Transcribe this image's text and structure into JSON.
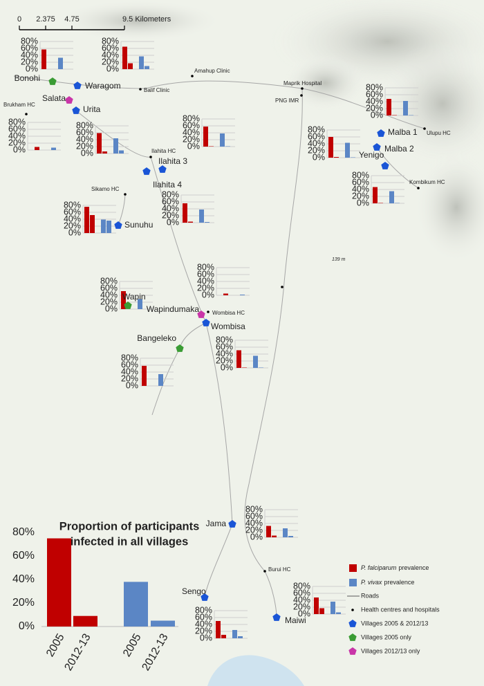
{
  "scale_bar": {
    "labels": [
      "0",
      "2.375",
      "4.75",
      "9.5 Kilometers"
    ]
  },
  "mini_chart_axis": {
    "ylim": [
      0,
      80
    ],
    "yticks": [
      {
        "value": 80,
        "label": "80%"
      },
      {
        "value": 60,
        "label": "60%"
      },
      {
        "value": 40,
        "label": "40%"
      },
      {
        "value": 20,
        "label": "20%"
      },
      {
        "value": 0,
        "label": "0%"
      }
    ]
  },
  "species": [
    {
      "italic": "P. falciparum",
      "label": "prevalence",
      "color": "#c00000"
    },
    {
      "italic": "P. vivax",
      "label": "prevalence",
      "color": "#5b86c5"
    }
  ],
  "village_types": {
    "both": {
      "label": "Villages 2005 & 2012/13",
      "color": "#1a55d6"
    },
    "2005": {
      "label": "Villages 2005 only",
      "color": "#3a9c34"
    },
    "2012": {
      "label": "Villages 2012/13 only",
      "color": "#c935a8"
    }
  },
  "legend_other": {
    "roads": "Roads",
    "health": "Health centres and hospitals"
  },
  "villages": [
    {
      "name": "Bonohi",
      "type": "2005",
      "values": [
        57,
        null,
        33,
        null
      ]
    },
    {
      "name": "Waragom",
      "type": "both",
      "values": [
        65,
        17,
        37,
        9
      ]
    },
    {
      "name": "Salata",
      "type": "2012",
      "values": [
        null,
        9,
        null,
        7
      ]
    },
    {
      "name": "Urita",
      "type": "both",
      "values": [
        59,
        6,
        44,
        9
      ]
    },
    {
      "name": "Ilahita 3",
      "type": "both",
      "values": [
        58,
        1,
        38,
        1
      ]
    },
    {
      "name": "Ilahita 4",
      "type": "both",
      "values": [
        56,
        3,
        38,
        2
      ]
    },
    {
      "name": "Sunuhu",
      "type": "both",
      "values": [
        76,
        52,
        39,
        36
      ]
    },
    {
      "name": "Malba 1",
      "type": "both",
      "values": [
        48,
        1,
        42,
        1
      ]
    },
    {
      "name": "Malba 2",
      "type": "both",
      "values": [
        60,
        2,
        43,
        1
      ]
    },
    {
      "name": "Yenigo",
      "type": "both",
      "values": [
        47,
        1,
        35,
        1
      ]
    },
    {
      "name": "Wapin",
      "type": "2005",
      "values": [
        52,
        null,
        29,
        null
      ]
    },
    {
      "name": "Wapindumaka",
      "type": "2012",
      "values": [
        null,
        5,
        null,
        2
      ]
    },
    {
      "name": "Wombisa",
      "type": "both",
      "values": [
        51,
        1,
        35,
        1
      ]
    },
    {
      "name": "Bangeleko",
      "type": "2005",
      "values": [
        58,
        null,
        34,
        null
      ]
    },
    {
      "name": "Jama",
      "type": "both",
      "values": [
        33,
        5,
        26,
        4
      ]
    },
    {
      "name": "Sengo",
      "type": "both",
      "values": [
        50,
        10,
        24,
        6
      ]
    },
    {
      "name": "Maiwi",
      "type": "both",
      "values": [
        48,
        17,
        36,
        5
      ]
    }
  ],
  "health_centres": [
    {
      "label": "Amahup Clinic"
    },
    {
      "label": "Balif Clinic"
    },
    {
      "label": "Maprik Hospital"
    },
    {
      "label": "PNG IMR"
    },
    {
      "label": "Brukham HC"
    },
    {
      "label": "Ilahita HC"
    },
    {
      "label": "Sikamo HC"
    },
    {
      "label": "Ulupu HC"
    },
    {
      "label": "Kombikum HC"
    },
    {
      "label": "Wombisa HC"
    },
    {
      "label": "Burui HC"
    }
  ],
  "elevation_label": "139 m",
  "summary_chart": {
    "type": "bar",
    "title": [
      "Proportion of participants",
      "infected in all villages"
    ],
    "categories": [
      "2005",
      "2012-13",
      "2005",
      "2012-13"
    ],
    "values": [
      75,
      9,
      38,
      5
    ],
    "ylim": [
      0,
      80
    ],
    "yticks": [
      {
        "value": 0,
        "label": "0%"
      },
      {
        "value": 20,
        "label": "20%"
      },
      {
        "value": 40,
        "label": "40%"
      },
      {
        "value": 60,
        "label": "60%"
      },
      {
        "value": 80,
        "label": "80%"
      }
    ]
  }
}
